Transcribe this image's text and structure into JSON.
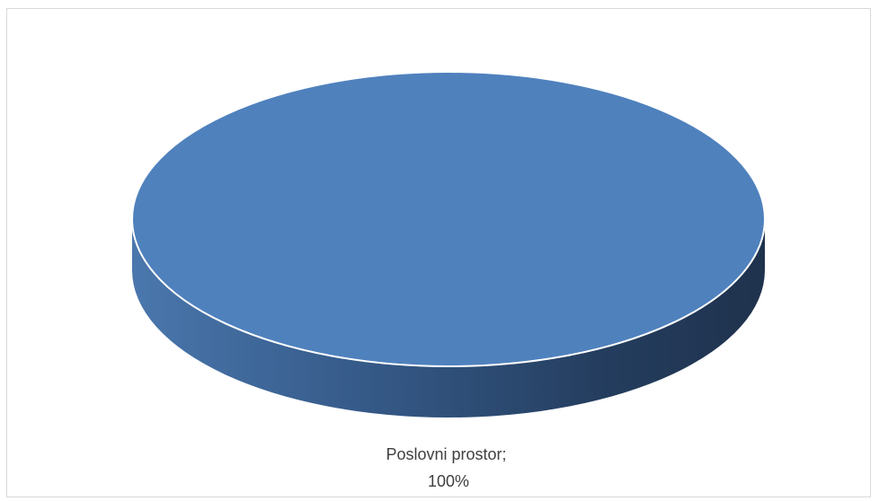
{
  "chart_data": {
    "type": "pie",
    "style": "3d",
    "title": "",
    "slices": [
      {
        "category": "Poslovni prostor",
        "value": 100,
        "label_line1": "Poslovni prostor;",
        "label_line2": "100%",
        "color": "#4f81bd"
      }
    ],
    "legend": "none"
  }
}
